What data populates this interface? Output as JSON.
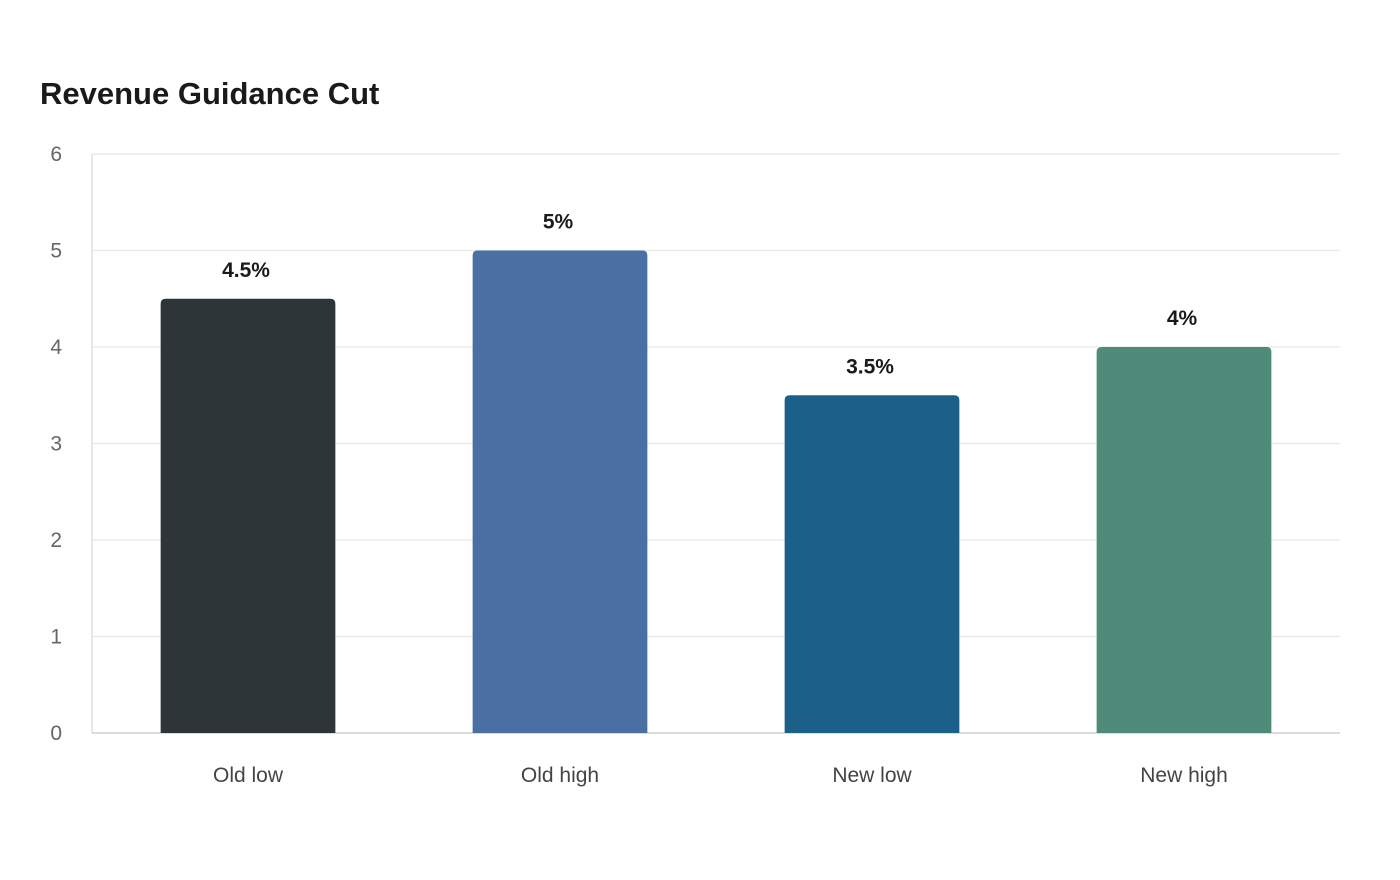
{
  "chart_data": {
    "type": "bar",
    "title": "Revenue Guidance Cut",
    "xlabel": "",
    "ylabel": "",
    "categories": [
      "Old low",
      "Old high",
      "New low",
      "New high"
    ],
    "values": [
      4.5,
      5,
      3.5,
      4
    ],
    "data_labels": [
      "4.5%",
      "5%",
      "3.5%",
      "4%"
    ],
    "colors": [
      "#2e3538",
      "#4a6fa3",
      "#1a6089",
      "#4e8c79"
    ],
    "ylim": [
      0,
      6
    ],
    "yticks": [
      0,
      1,
      2,
      3,
      4,
      5,
      6
    ],
    "grid": true,
    "legend": "none"
  }
}
